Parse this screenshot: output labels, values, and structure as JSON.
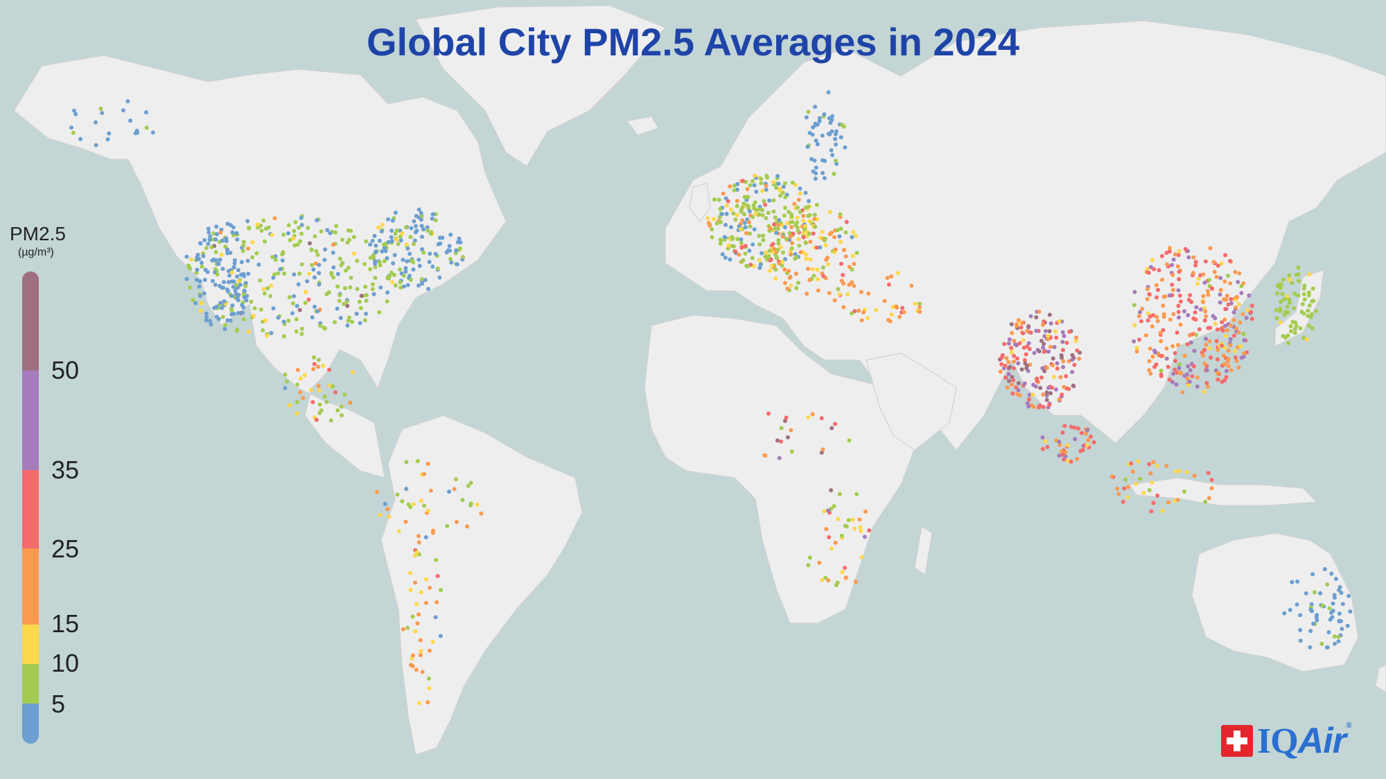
{
  "title": "Global City PM2.5 Averages in 2024",
  "legend": {
    "title": "PM2.5",
    "unit": "(µg/m³)",
    "ticks": [
      "50",
      "35",
      "25",
      "15",
      "10",
      "5"
    ],
    "colors": {
      "good": "#6d9fd0",
      "moderate": "#a4cb51",
      "usg_low": "#fdd84a",
      "usg": "#fb9a4f",
      "unhealthy": "#f56b6b",
      "very_unhealthy": "#a57bbb",
      "hazardous": "#9f6f80"
    }
  },
  "logo": {
    "brand": "IQ",
    "brand2": "Air",
    "reg": "®"
  },
  "colors": {
    "ocean": "#c3d5d5",
    "land": "#eeeeee",
    "title": "#1f44a8"
  }
}
